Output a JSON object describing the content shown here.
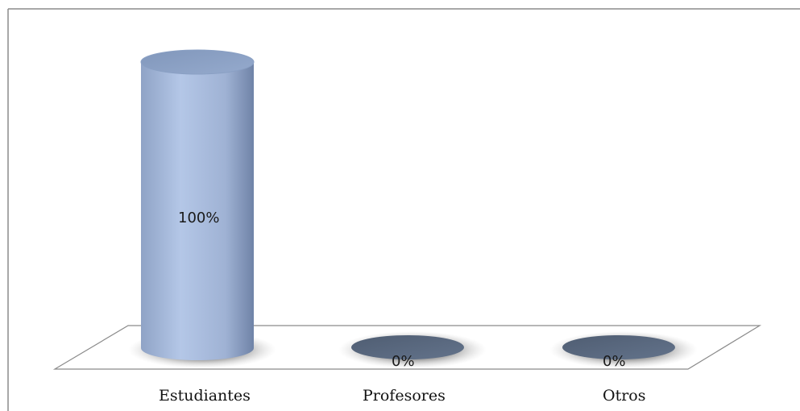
{
  "chart_data": {
    "type": "bar",
    "style": "3d-cylinder",
    "categories": [
      "Estudiantes",
      "Profesores",
      "Otros"
    ],
    "values": [
      100,
      0,
      0
    ],
    "data_labels": [
      "100%",
      "0%",
      "0%"
    ],
    "unit": "%",
    "ylim": [
      0,
      100
    ],
    "grid": false,
    "legend": "none",
    "title": "",
    "xlabel": "",
    "ylabel": "",
    "colors": {
      "bar_fill": "#a5b8d8",
      "bar_edge": "#7a8fb3",
      "empty_cap": "#5b6b82",
      "floor_stroke": "#8a8a8a",
      "frame": "#7f7f7f"
    }
  }
}
